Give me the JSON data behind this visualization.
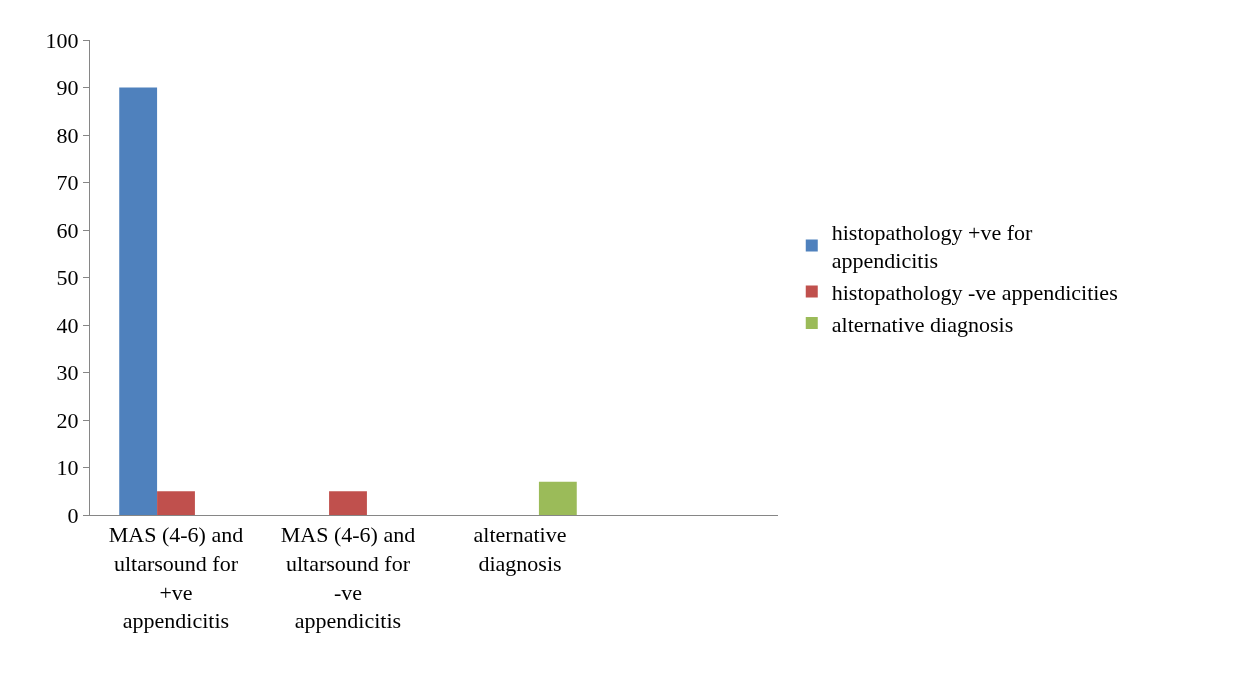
{
  "chart_data": {
    "type": "bar",
    "categories": [
      "MAS (4-6) and ultarsound for +ve appendicitis",
      "MAS (4-6) and ultarsound for -ve appendicitis",
      "alternative diagnosis",
      null
    ],
    "series": [
      {
        "name": "histopathology +ve for appendicitis",
        "color": "#4f81bd",
        "values": [
          90,
          null,
          null,
          null
        ]
      },
      {
        "name": "histopathology -ve appendicities",
        "color": "#c0504d",
        "values": [
          5,
          5,
          null,
          null
        ]
      },
      {
        "name": "alternative diagnosis",
        "color": "#9bbb59",
        "values": [
          null,
          null,
          7,
          null
        ]
      }
    ],
    "ylim": [
      0,
      100
    ],
    "yticks": [
      0,
      10,
      20,
      30,
      40,
      50,
      60,
      70,
      80,
      90,
      100
    ],
    "legend": "right"
  }
}
